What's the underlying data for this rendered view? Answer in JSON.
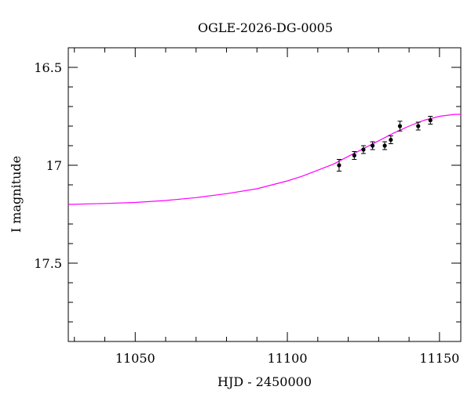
{
  "chart_data": {
    "type": "scatter",
    "title": "OGLE-2026-DG-0005",
    "xlabel": "HJD - 2450000",
    "ylabel": "I magnitude",
    "xlim": [
      11028,
      11157
    ],
    "ylim": [
      17.9,
      16.4
    ],
    "y_inverted": true,
    "xticks": [
      11050,
      11100,
      11150
    ],
    "xtick_labels": [
      "11050",
      "11100",
      "11150"
    ],
    "yticks": [
      16.5,
      17,
      17.5
    ],
    "ytick_labels": [
      "16.5",
      "17",
      "17.5"
    ],
    "grid": false,
    "colors": {
      "model": "#ff00ff",
      "points": "#000000",
      "axes": "#000000"
    },
    "series": [
      {
        "kind": "points-with-errorbars",
        "x": [
          11117,
          11122,
          11125,
          11128,
          11132,
          11134,
          11137,
          11143,
          11147
        ],
        "y": [
          17.0,
          16.95,
          16.92,
          16.9,
          16.9,
          16.87,
          16.8,
          16.8,
          16.77
        ],
        "yerr": [
          0.03,
          0.02,
          0.02,
          0.02,
          0.02,
          0.02,
          0.025,
          0.02,
          0.02
        ]
      },
      {
        "kind": "model-curve",
        "x": [
          11028,
          11040,
          11050,
          11060,
          11070,
          11080,
          11090,
          11100,
          11105,
          11110,
          11115,
          11120,
          11125,
          11130,
          11135,
          11140,
          11145,
          11150,
          11155,
          11157
        ],
        "y": [
          17.2,
          17.195,
          17.19,
          17.18,
          17.165,
          17.145,
          17.12,
          17.08,
          17.055,
          17.025,
          16.995,
          16.955,
          16.915,
          16.875,
          16.835,
          16.8,
          16.77,
          16.75,
          16.74,
          16.74
        ]
      }
    ]
  }
}
